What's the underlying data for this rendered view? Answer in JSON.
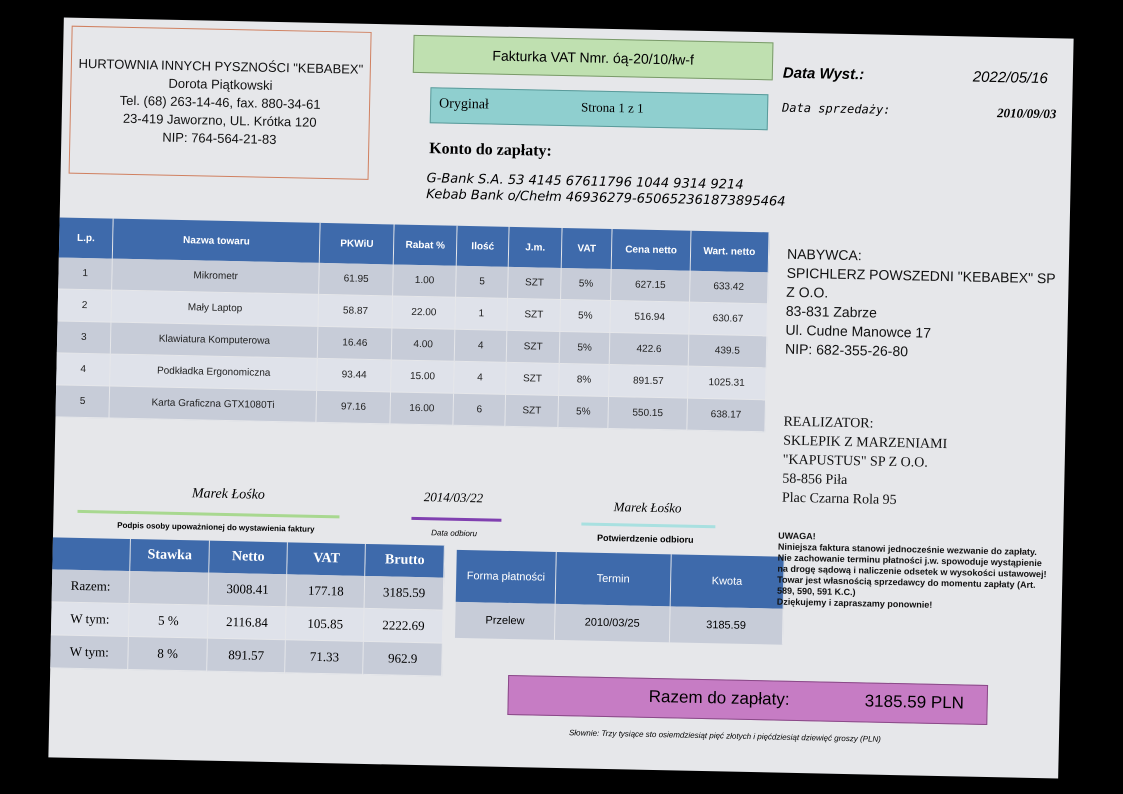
{
  "seller": {
    "name": "HURTOWNIA INNYCH PYSZNOŚCI \"KEBABEX\"",
    "person": "Dorota Piątkowski",
    "phone": "Tel. (68) 263-14-46,  fax. 880-34-61",
    "address": "23-419 Jaworzno,  UL. Krótka 120",
    "nip": "NIP: 764-564-21-83"
  },
  "invoice": {
    "title": "Fakturka VAT Nmr. óą-20/10/łw-f",
    "original": "Oryginał",
    "page": "Strona 1 z 1",
    "issue_label": "Data Wyst.:",
    "issue_date": "2022/05/16",
    "sale_label": "Data sprzedaży:",
    "sale_date": "2010/09/03"
  },
  "account": {
    "heading": "Konto do zapłaty:",
    "line1": "G-Bank  S.A.  53 4145 67611796 1044 9314 9214",
    "line2": "Kebab Bank   o/Chełm 46936279-650652361873895464"
  },
  "items": {
    "headers": [
      "L.p.",
      "Nazwa towaru",
      "PKWiU",
      "Rabat %",
      "Ilość",
      "J.m.",
      "VAT",
      "Cena netto",
      "Wart. netto"
    ],
    "rows": [
      [
        "1",
        "Mikrometr",
        "61.95",
        "1.00",
        "5",
        "SZT",
        "5%",
        "627.15",
        "633.42"
      ],
      [
        "2",
        "Mały Laptop",
        "58.87",
        "22.00",
        "1",
        "SZT",
        "5%",
        "516.94",
        "630.67"
      ],
      [
        "3",
        "Klawiatura  Komputerowa",
        "16.46",
        "4.00",
        "4",
        "SZT",
        "5%",
        "422.6",
        "439.5"
      ],
      [
        "4",
        "Podkładka Ergonomiczna",
        "93.44",
        "15.00",
        "4",
        "SZT",
        "8%",
        "891.57",
        "1025.31"
      ],
      [
        "5",
        "Karta Graficzna  GTX1080Ti",
        "97.16",
        "16.00",
        "6",
        "SZT",
        "5%",
        "550.15",
        "638.17"
      ]
    ]
  },
  "buyer": {
    "label": "NABYWCA:",
    "name1": "SPICHLERZ POWSZEDNI \"KEBABEX\" SP",
    "name2": "Z O.O.",
    "city": "83-831 Zabrze",
    "street": "Ul. Cudne Manowce 17",
    "nip": "NIP: 682-355-26-80"
  },
  "realizator": {
    "label": "REALIZATOR:",
    "name1": "SKLEPIK Z MARZENIAMI",
    "name2": "\"KAPUSTUS\"  SP Z O.O.",
    "city": "58-856 Piła",
    "street": "Plac Czarna Rola 95"
  },
  "signatures": {
    "auth_name": "Marek Łośko",
    "auth_caption": "Podpis osoby upoważnionej  do wystawienia  faktury",
    "receipt_date": "2014/03/22",
    "receipt_date_caption": "Data odbioru",
    "confirm_name": "Marek Łośko",
    "confirm_caption": "Potwierdzenie odbioru"
  },
  "summary": {
    "headers": [
      "",
      "Stawka",
      "Netto",
      "VAT",
      "Brutto"
    ],
    "rows": [
      [
        "Razem:",
        "",
        "3008.41",
        "177.18",
        "3185.59"
      ],
      [
        "W tym:",
        "5 %",
        "2116.84",
        "105.85",
        "2222.69"
      ],
      [
        "W tym:",
        "8 %",
        "891.57",
        "71.33",
        "962.9"
      ]
    ]
  },
  "payment": {
    "headers": [
      "Forma płatności",
      "Termin",
      "Kwota"
    ],
    "row": [
      "Przelew",
      "2010/03/25",
      "3185.59"
    ]
  },
  "notice": {
    "title": "UWAGA!",
    "body": "Niniejsza  faktura stanowi jednocześnie wezwanie do zapłaty. Nie zachowanie terminu płatności j.w. spowoduje wystąpienie na drogę sądową i naliczenie odsetek w wysokości ustawowej!  Towar jest własnością sprzedawcy do momentu zapłaty (Art. 589, 590, 591 K.C.)",
    "thanks": "Dziękujemy i zapraszamy ponownie!"
  },
  "total": {
    "label": "Razem do zapłaty:",
    "amount": "3185.59 PLN"
  },
  "words": "Słownie: Trzy tysiące sto osiemdziesiąt pięć złotych i pięćdziesiąt dziewięć groszy (PLN)",
  "colors": {
    "header_blue": "#3e6aab",
    "title_green": "#bfe0b0",
    "original_teal": "#8fcfcf",
    "total_magenta": "#c67cc4"
  }
}
